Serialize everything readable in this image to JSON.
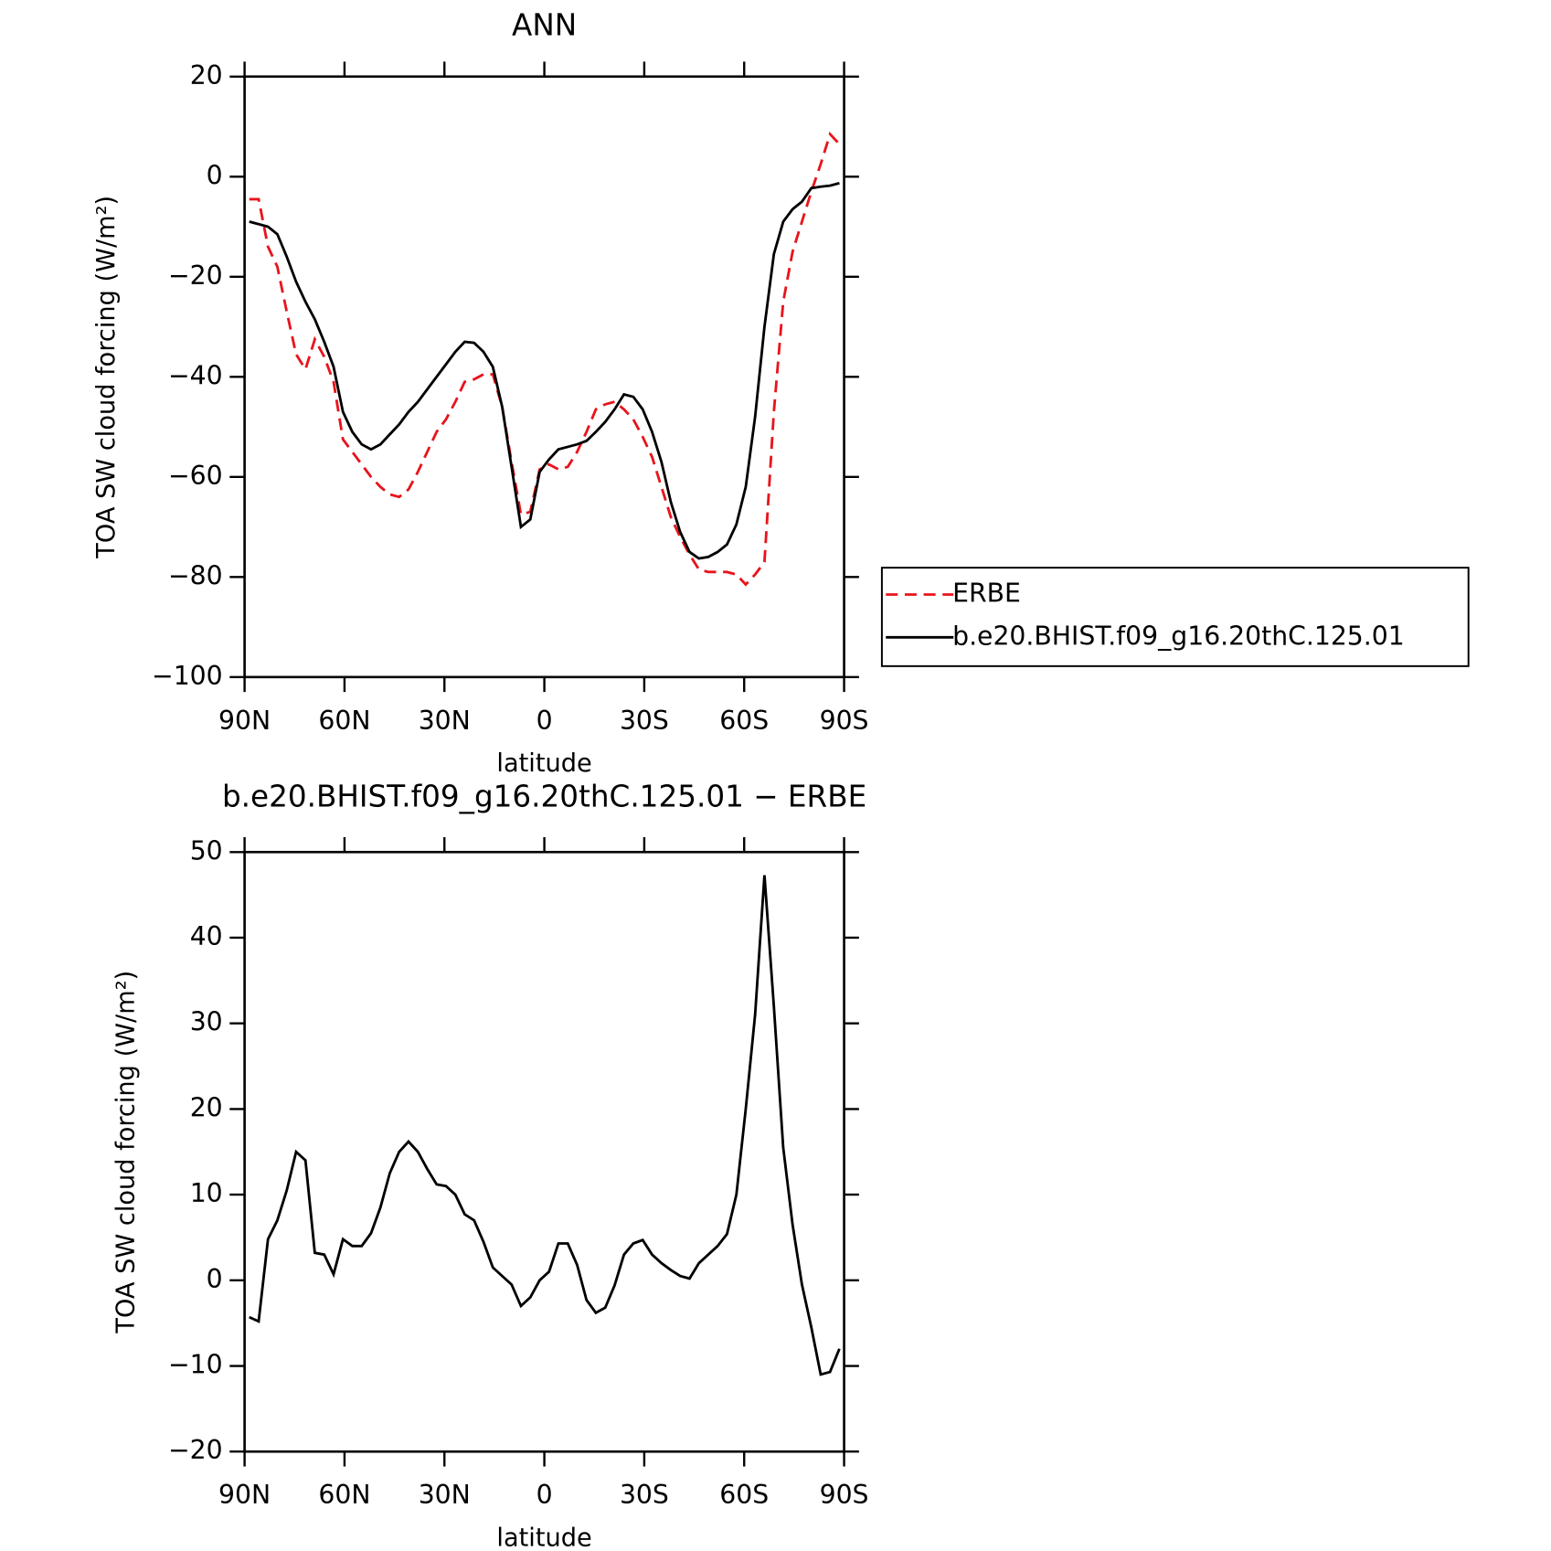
{
  "chart_data": [
    {
      "type": "line",
      "title": "ANN",
      "xlabel": "latitude",
      "ylabel": "TOA SW cloud forcing (W/m²)",
      "x": [
        88.59,
        85.78,
        82.97,
        80.16,
        77.34,
        74.53,
        71.72,
        68.91,
        66.09,
        63.28,
        60.47,
        57.66,
        54.84,
        52.03,
        49.22,
        46.41,
        43.59,
        40.78,
        37.97,
        35.16,
        32.34,
        29.53,
        26.72,
        23.91,
        21.09,
        18.28,
        15.47,
        12.66,
        9.84,
        7.03,
        4.22,
        1.41,
        -1.41,
        -4.22,
        -7.03,
        -9.84,
        -12.66,
        -15.47,
        -18.28,
        -21.09,
        -23.91,
        -26.72,
        -29.53,
        -32.34,
        -35.16,
        -37.97,
        -40.78,
        -43.59,
        -46.41,
        -49.22,
        -52.03,
        -54.84,
        -57.66,
        -60.47,
        -63.28,
        -66.09,
        -68.91,
        -71.72,
        -74.53,
        -77.34,
        -80.16,
        -82.97,
        -85.78,
        -88.59
      ],
      "series": [
        {
          "name": "ERBE",
          "color": "#e8141c",
          "style": "dashed",
          "values": [
            -4.5,
            -4.5,
            -14,
            -18,
            -27,
            -35.5,
            -38.5,
            -32.5,
            -36,
            -41,
            -52.5,
            -55,
            -57.5,
            -60,
            -62,
            -63.5,
            -64,
            -62.5,
            -59,
            -55,
            -51,
            -48.5,
            -45,
            -41,
            -40.5,
            -39.5,
            -39.5,
            -46,
            -57,
            -67.5,
            -67,
            -58.5,
            -57.5,
            -58.5,
            -58,
            -55,
            -51,
            -46.5,
            -45.5,
            -45,
            -46.5,
            -48.5,
            -52,
            -56,
            -62,
            -68,
            -72,
            -75.5,
            -78.5,
            -79,
            -79,
            -79,
            -79.5,
            -81.5,
            -79.5,
            -77,
            -47,
            -25,
            -15,
            -9,
            -3,
            2.5,
            8.5,
            6.5
          ]
        },
        {
          "name": "b.e20.BHIST.f09_g16.20thC.125.01",
          "color": "#000000",
          "style": "solid",
          "values": [
            -9,
            -9.5,
            -10,
            -11.5,
            -16,
            -21,
            -25,
            -28.5,
            -33,
            -38,
            -47,
            -51,
            -53.5,
            -54.5,
            -53.5,
            -51.5,
            -49.5,
            -47,
            -45,
            -42.5,
            -40,
            -37.5,
            -35,
            -33,
            -33.2,
            -35,
            -38,
            -46,
            -58,
            -70,
            -68.5,
            -59,
            -56.5,
            -54.5,
            -54,
            -53.5,
            -52.8,
            -51,
            -49,
            -46.5,
            -43.5,
            -44,
            -46.5,
            -51,
            -57,
            -65,
            -71,
            -75,
            -76.3,
            -76,
            -75,
            -73.5,
            -69.5,
            -62,
            -48,
            -30,
            -15.5,
            -9,
            -6.5,
            -5,
            -2.3,
            -2,
            -1.8,
            -1.3
          ]
        }
      ],
      "xlim": [
        90,
        -90
      ],
      "xticks": [
        {
          "value": 90,
          "label": "90N"
        },
        {
          "value": 60,
          "label": "60N"
        },
        {
          "value": 30,
          "label": "30N"
        },
        0,
        {
          "value": -30,
          "label": "30S"
        },
        {
          "value": -60,
          "label": "60S"
        },
        {
          "value": -90,
          "label": "90S"
        }
      ],
      "ylim": [
        -100,
        20
      ],
      "yticks": [
        {
          "value": -100,
          "label": "−100"
        },
        {
          "value": -80,
          "label": "−80"
        },
        {
          "value": -60,
          "label": "−60"
        },
        {
          "value": -40,
          "label": "−40"
        },
        {
          "value": -20,
          "label": "−20"
        },
        0,
        20
      ],
      "legend": "outside right"
    },
    {
      "type": "line",
      "title": "b.e20.BHIST.f09_g16.20thC.125.01 − ERBE",
      "xlabel": "latitude",
      "ylabel": "TOA SW cloud forcing (W/m²)",
      "x": [
        88.59,
        85.78,
        82.97,
        80.16,
        77.34,
        74.53,
        71.72,
        68.91,
        66.09,
        63.28,
        60.47,
        57.66,
        54.84,
        52.03,
        49.22,
        46.41,
        43.59,
        40.78,
        37.97,
        35.16,
        32.34,
        29.53,
        26.72,
        23.91,
        21.09,
        18.28,
        15.47,
        12.66,
        9.84,
        7.03,
        4.22,
        1.41,
        -1.41,
        -4.22,
        -7.03,
        -9.84,
        -12.66,
        -15.47,
        -18.28,
        -21.09,
        -23.91,
        -26.72,
        -29.53,
        -32.34,
        -35.16,
        -37.97,
        -40.78,
        -43.59,
        -46.41,
        -49.22,
        -52.03,
        -54.84,
        -57.66,
        -60.47,
        -63.28,
        -66.09,
        -68.91,
        -71.72,
        -74.53,
        -77.34,
        -80.16,
        -82.97,
        -85.78,
        -88.59
      ],
      "series": [
        {
          "color": "#000000",
          "style": "solid",
          "values": [
            -4.3,
            -4.8,
            4.8,
            7,
            10.5,
            15,
            14,
            3.2,
            3,
            0.7,
            4.8,
            4,
            4,
            5.5,
            8.5,
            12.5,
            15,
            16.2,
            15,
            13,
            11.2,
            11,
            10,
            7.7,
            7,
            4.5,
            1.5,
            0.5,
            -0.5,
            -3,
            -2,
            0,
            1,
            4.3,
            4.3,
            1.8,
            -2.3,
            -3.8,
            -3.2,
            -0.6,
            3,
            4.3,
            4.7,
            3,
            2,
            1.2,
            0.5,
            0.2,
            2,
            3,
            4,
            5.4,
            10,
            20,
            31,
            47.3,
            32,
            15.5,
            6.5,
            -0.5,
            -5.5,
            -11,
            -10.7,
            -8
          ]
        }
      ],
      "xlim": [
        90,
        -90
      ],
      "xticks": [
        {
          "value": 90,
          "label": "90N"
        },
        {
          "value": 60,
          "label": "60N"
        },
        {
          "value": 30,
          "label": "30N"
        },
        0,
        {
          "value": -30,
          "label": "30S"
        },
        {
          "value": -60,
          "label": "60S"
        },
        {
          "value": -90,
          "label": "90S"
        }
      ],
      "ylim": [
        -20,
        50
      ],
      "yticks": [
        {
          "value": -20,
          "label": "−20"
        },
        {
          "value": -10,
          "label": "−10"
        },
        0,
        10,
        20,
        30,
        40,
        50
      ]
    }
  ]
}
